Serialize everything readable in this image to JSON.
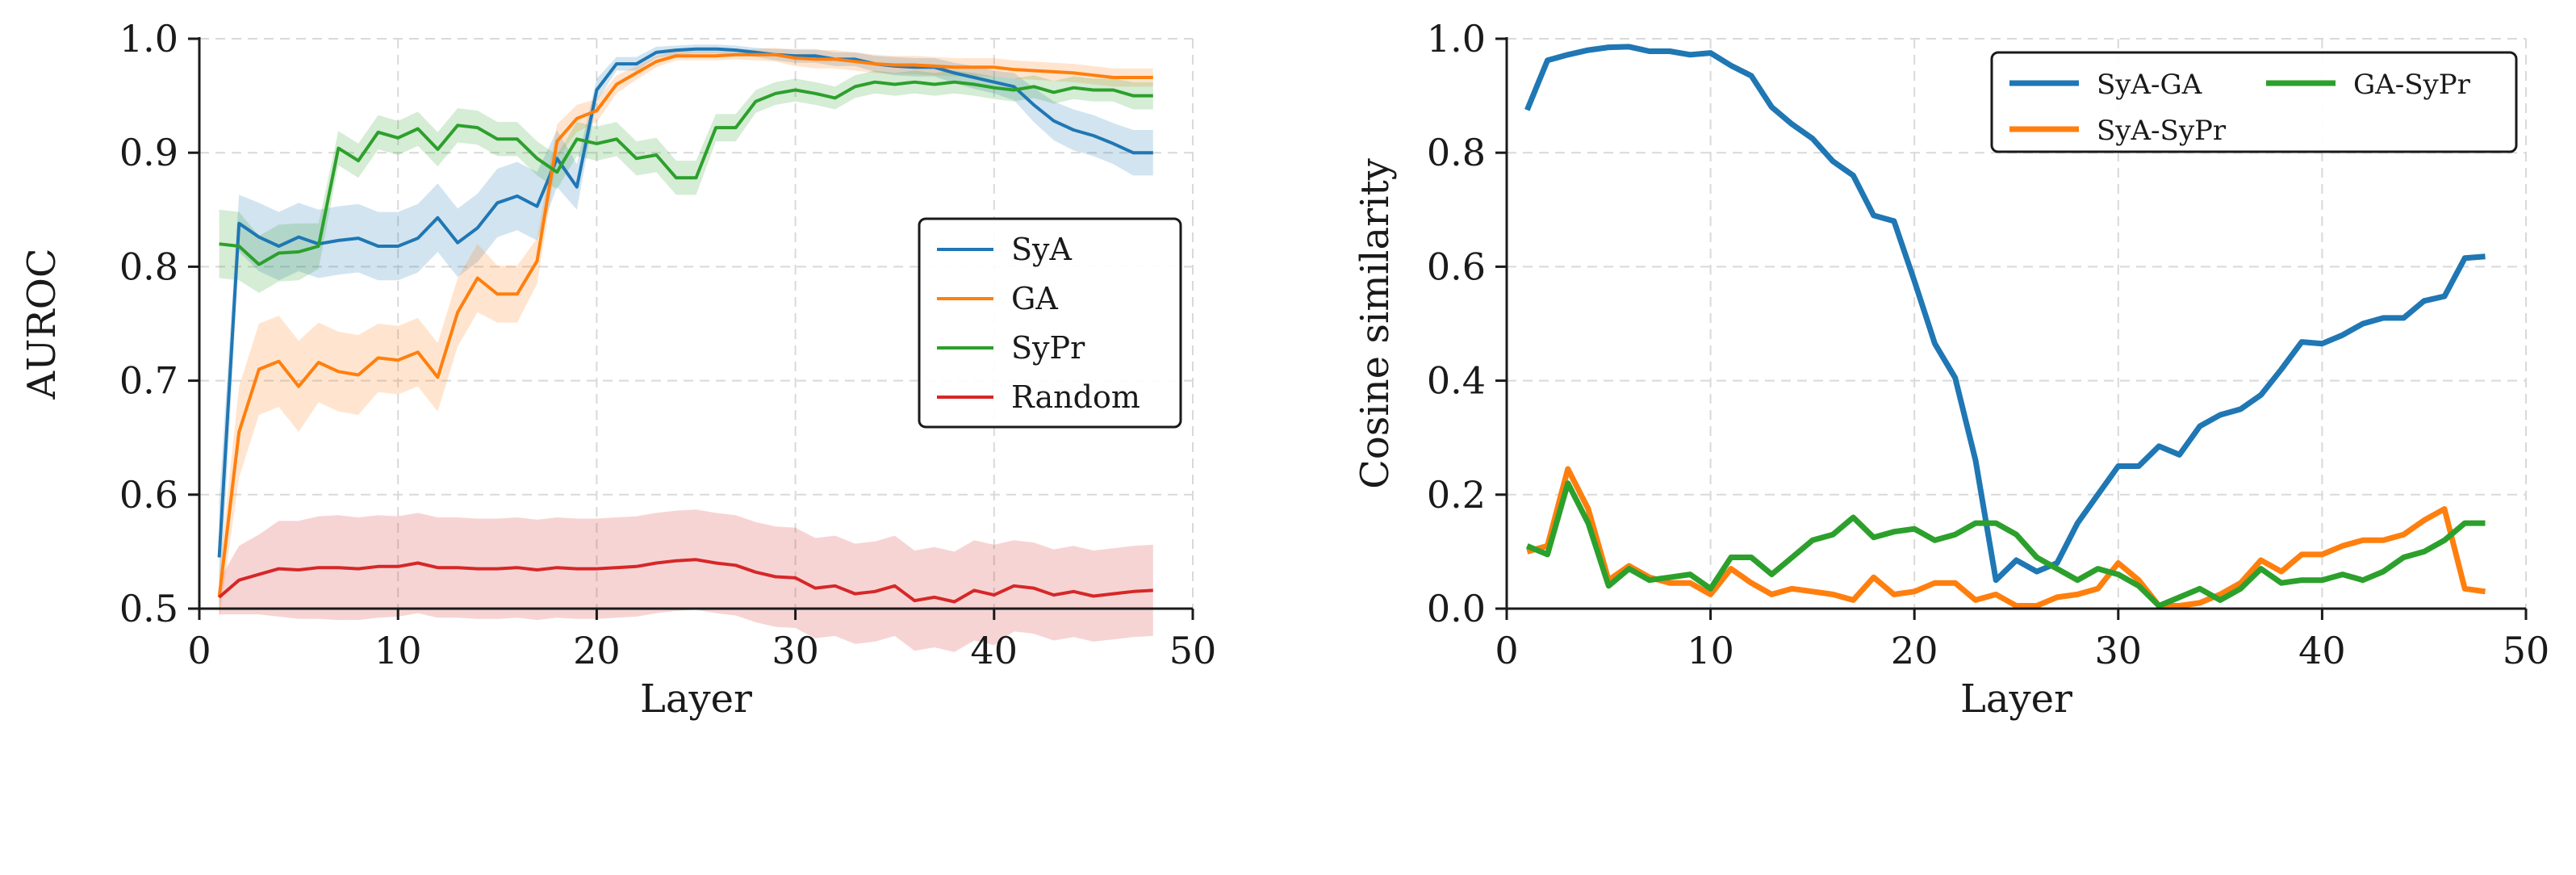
{
  "chart_data": [
    {
      "type": "line",
      "xlabel": "Layer",
      "ylabel": "AUROC",
      "xlim": [
        0,
        50
      ],
      "ylim": [
        0.5,
        1.0
      ],
      "xticks": [
        0,
        10,
        20,
        30,
        40,
        50
      ],
      "yticks": [
        0.5,
        0.6,
        0.7,
        0.8,
        0.9,
        1.0
      ],
      "xtick_labels": [
        "0",
        "10",
        "20",
        "30",
        "40",
        "50"
      ],
      "ytick_labels": [
        "0.5",
        "0.6",
        "0.7",
        "0.8",
        "0.9",
        "1.0"
      ],
      "grid": true,
      "legend_position": "center-right",
      "x": [
        1,
        2,
        3,
        4,
        5,
        6,
        7,
        8,
        9,
        10,
        11,
        12,
        13,
        14,
        15,
        16,
        17,
        18,
        19,
        20,
        21,
        22,
        23,
        24,
        25,
        26,
        27,
        28,
        29,
        30,
        31,
        32,
        33,
        34,
        35,
        36,
        37,
        38,
        39,
        40,
        41,
        42,
        43,
        44,
        45,
        46,
        47,
        48
      ],
      "series": [
        {
          "name": "SyA",
          "color": "#1f77b4",
          "values": [
            0.545,
            0.838,
            0.826,
            0.818,
            0.826,
            0.82,
            0.823,
            0.825,
            0.818,
            0.818,
            0.825,
            0.843,
            0.821,
            0.834,
            0.856,
            0.862,
            0.853,
            0.895,
            0.87,
            0.955,
            0.978,
            0.978,
            0.988,
            0.99,
            0.991,
            0.991,
            0.99,
            0.988,
            0.986,
            0.985,
            0.985,
            0.982,
            0.982,
            0.978,
            0.976,
            0.975,
            0.975,
            0.97,
            0.966,
            0.962,
            0.958,
            0.942,
            0.928,
            0.92,
            0.915,
            0.908,
            0.9,
            0.9
          ],
          "band": [
            0.05,
            0.025,
            0.03,
            0.03,
            0.03,
            0.03,
            0.03,
            0.03,
            0.03,
            0.03,
            0.03,
            0.03,
            0.03,
            0.03,
            0.03,
            0.03,
            0.03,
            0.025,
            0.02,
            0.01,
            0.006,
            0.006,
            0.005,
            0.004,
            0.004,
            0.004,
            0.004,
            0.004,
            0.005,
            0.006,
            0.006,
            0.006,
            0.006,
            0.007,
            0.008,
            0.008,
            0.008,
            0.009,
            0.01,
            0.01,
            0.012,
            0.015,
            0.017,
            0.018,
            0.018,
            0.018,
            0.02,
            0.02
          ]
        },
        {
          "name": "GA",
          "color": "#ff7f0e",
          "values": [
            0.51,
            0.655,
            0.71,
            0.717,
            0.695,
            0.716,
            0.708,
            0.705,
            0.72,
            0.718,
            0.725,
            0.703,
            0.76,
            0.79,
            0.776,
            0.776,
            0.805,
            0.91,
            0.93,
            0.937,
            0.96,
            0.97,
            0.98,
            0.985,
            0.985,
            0.985,
            0.986,
            0.986,
            0.986,
            0.983,
            0.982,
            0.982,
            0.98,
            0.978,
            0.977,
            0.977,
            0.976,
            0.975,
            0.975,
            0.975,
            0.973,
            0.972,
            0.971,
            0.97,
            0.968,
            0.966,
            0.966,
            0.966
          ],
          "band": [
            0.02,
            0.04,
            0.04,
            0.04,
            0.04,
            0.035,
            0.035,
            0.035,
            0.03,
            0.03,
            0.03,
            0.03,
            0.03,
            0.03,
            0.025,
            0.025,
            0.02,
            0.015,
            0.012,
            0.01,
            0.008,
            0.006,
            0.005,
            0.004,
            0.004,
            0.004,
            0.004,
            0.005,
            0.006,
            0.007,
            0.008,
            0.008,
            0.008,
            0.008,
            0.008,
            0.008,
            0.008,
            0.008,
            0.008,
            0.008,
            0.008,
            0.008,
            0.008,
            0.008,
            0.008,
            0.008,
            0.008,
            0.008
          ]
        },
        {
          "name": "SyPr",
          "color": "#2ca02c",
          "values": [
            0.82,
            0.818,
            0.802,
            0.812,
            0.813,
            0.818,
            0.904,
            0.893,
            0.918,
            0.913,
            0.921,
            0.903,
            0.924,
            0.922,
            0.912,
            0.912,
            0.895,
            0.883,
            0.912,
            0.908,
            0.912,
            0.895,
            0.898,
            0.878,
            0.878,
            0.922,
            0.922,
            0.945,
            0.952,
            0.955,
            0.952,
            0.948,
            0.958,
            0.962,
            0.96,
            0.962,
            0.96,
            0.962,
            0.96,
            0.957,
            0.955,
            0.958,
            0.953,
            0.957,
            0.955,
            0.955,
            0.95,
            0.95
          ],
          "band": [
            0.03,
            0.03,
            0.025,
            0.025,
            0.025,
            0.02,
            0.015,
            0.015,
            0.015,
            0.015,
            0.015,
            0.015,
            0.015,
            0.015,
            0.015,
            0.015,
            0.015,
            0.015,
            0.015,
            0.015,
            0.015,
            0.015,
            0.015,
            0.015,
            0.015,
            0.012,
            0.012,
            0.01,
            0.01,
            0.01,
            0.01,
            0.01,
            0.01,
            0.01,
            0.01,
            0.01,
            0.01,
            0.01,
            0.01,
            0.01,
            0.01,
            0.01,
            0.01,
            0.01,
            0.01,
            0.01,
            0.012,
            0.012
          ]
        },
        {
          "name": "Random",
          "color": "#d62728",
          "values": [
            0.51,
            0.525,
            0.53,
            0.535,
            0.534,
            0.536,
            0.536,
            0.535,
            0.537,
            0.537,
            0.54,
            0.536,
            0.536,
            0.535,
            0.535,
            0.536,
            0.534,
            0.536,
            0.535,
            0.535,
            0.536,
            0.537,
            0.54,
            0.542,
            0.543,
            0.54,
            0.538,
            0.532,
            0.528,
            0.527,
            0.518,
            0.52,
            0.513,
            0.515,
            0.52,
            0.507,
            0.51,
            0.506,
            0.516,
            0.512,
            0.52,
            0.518,
            0.512,
            0.515,
            0.511,
            0.513,
            0.515,
            0.516
          ],
          "band": [
            0.015,
            0.03,
            0.035,
            0.042,
            0.043,
            0.045,
            0.046,
            0.045,
            0.045,
            0.044,
            0.044,
            0.044,
            0.044,
            0.044,
            0.044,
            0.044,
            0.044,
            0.044,
            0.044,
            0.044,
            0.044,
            0.044,
            0.044,
            0.044,
            0.044,
            0.044,
            0.044,
            0.044,
            0.044,
            0.044,
            0.044,
            0.044,
            0.044,
            0.044,
            0.044,
            0.044,
            0.044,
            0.044,
            0.044,
            0.044,
            0.04,
            0.04,
            0.04,
            0.04,
            0.04,
            0.04,
            0.04,
            0.04
          ]
        }
      ]
    },
    {
      "type": "line",
      "xlabel": "Layer",
      "ylabel": "Cosine similarity",
      "xlim": [
        0,
        50
      ],
      "ylim": [
        0.0,
        1.0
      ],
      "xticks": [
        0,
        10,
        20,
        30,
        40,
        50
      ],
      "yticks": [
        0.0,
        0.2,
        0.4,
        0.6,
        0.8,
        1.0
      ],
      "xtick_labels": [
        "0",
        "10",
        "20",
        "30",
        "40",
        "50"
      ],
      "ytick_labels": [
        "0.0",
        "0.2",
        "0.4",
        "0.6",
        "0.8",
        "1.0"
      ],
      "grid": true,
      "legend_position": "top-right",
      "x": [
        1,
        2,
        3,
        4,
        5,
        6,
        7,
        8,
        9,
        10,
        11,
        12,
        13,
        14,
        15,
        16,
        17,
        18,
        19,
        20,
        21,
        22,
        23,
        24,
        25,
        26,
        27,
        28,
        29,
        30,
        31,
        32,
        33,
        34,
        35,
        36,
        37,
        38,
        39,
        40,
        41,
        42,
        43,
        44,
        45,
        46,
        47,
        48
      ],
      "series": [
        {
          "name": "SyA-GA",
          "color": "#1f77b4",
          "values": [
            0.875,
            0.962,
            0.972,
            0.98,
            0.985,
            0.986,
            0.978,
            0.978,
            0.972,
            0.975,
            0.953,
            0.935,
            0.88,
            0.85,
            0.825,
            0.785,
            0.76,
            0.69,
            0.68,
            0.575,
            0.465,
            0.405,
            0.26,
            0.05,
            0.085,
            0.065,
            0.08,
            0.15,
            0.2,
            0.25,
            0.25,
            0.285,
            0.27,
            0.32,
            0.34,
            0.35,
            0.375,
            0.42,
            0.468,
            0.465,
            0.48,
            0.5,
            0.51,
            0.51,
            0.54,
            0.548,
            0.615,
            0.618
          ]
        },
        {
          "name": "SyA-SyPr",
          "color": "#ff7f0e",
          "values": [
            0.1,
            0.11,
            0.245,
            0.175,
            0.05,
            0.075,
            0.055,
            0.045,
            0.045,
            0.025,
            0.07,
            0.045,
            0.025,
            0.035,
            0.03,
            0.025,
            0.015,
            0.055,
            0.025,
            0.03,
            0.045,
            0.045,
            0.015,
            0.025,
            0.005,
            0.005,
            0.02,
            0.025,
            0.035,
            0.08,
            0.05,
            0.005,
            0.005,
            0.01,
            0.025,
            0.045,
            0.085,
            0.065,
            0.095,
            0.095,
            0.11,
            0.12,
            0.12,
            0.13,
            0.155,
            0.175,
            0.035,
            0.03
          ]
        },
        {
          "name": "GA-SyPr",
          "color": "#2ca02c",
          "values": [
            0.11,
            0.095,
            0.22,
            0.15,
            0.04,
            0.07,
            0.05,
            0.055,
            0.06,
            0.035,
            0.09,
            0.09,
            0.06,
            0.09,
            0.12,
            0.13,
            0.16,
            0.125,
            0.135,
            0.14,
            0.12,
            0.13,
            0.15,
            0.15,
            0.13,
            0.09,
            0.07,
            0.05,
            0.07,
            0.06,
            0.04,
            0.005,
            0.02,
            0.035,
            0.015,
            0.035,
            0.07,
            0.045,
            0.05,
            0.05,
            0.06,
            0.05,
            0.065,
            0.09,
            0.1,
            0.12,
            0.15,
            0.15
          ]
        }
      ]
    }
  ]
}
